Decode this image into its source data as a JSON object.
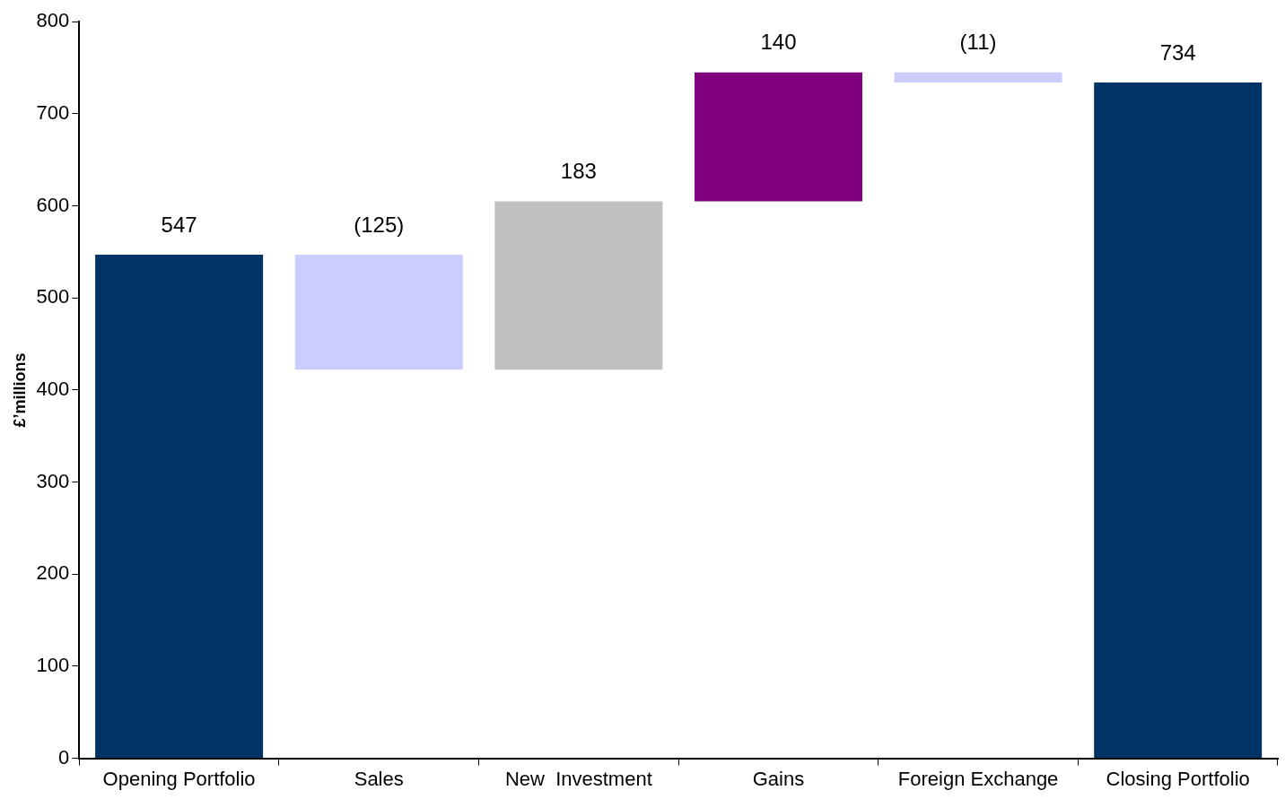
{
  "chart_data": {
    "type": "bar",
    "ylabel": "£’millions",
    "categories": [
      "Opening Portfolio",
      "Sales",
      "New  Investment",
      "Gains",
      "Foreign Exchange",
      "Closing Portfolio"
    ],
    "values": [
      547,
      -125,
      183,
      140,
      -11,
      734
    ],
    "base": [
      0,
      547,
      422,
      605,
      745,
      0
    ],
    "colors": [
      "#003366",
      "#ccccff",
      "#c0c0c0",
      "#800080",
      "#ccccff",
      "#003366"
    ],
    "value_labels": [
      "547",
      "(125)",
      "183",
      "140",
      "(11)",
      "734"
    ],
    "ylim": [
      0,
      800
    ],
    "yticks": [
      0,
      100,
      200,
      300,
      400,
      500,
      600,
      700,
      800
    ],
    "grid": false,
    "legend": false
  }
}
